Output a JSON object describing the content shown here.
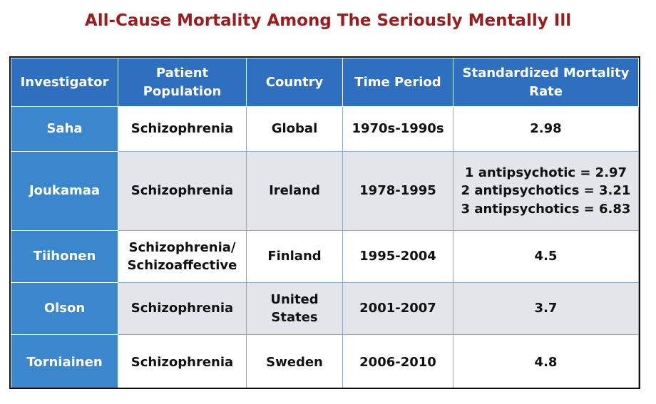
{
  "title": "All-Cause Mortality Among The Seriously Mentally Ill",
  "headers": {
    "investigator": "Investigator",
    "population_line1": "Patient",
    "population_line2": "Population",
    "country": "Country",
    "time_period": "Time Period",
    "smr_line1": "Standardized Mortality",
    "smr_line2": "Rate"
  },
  "rows": [
    {
      "investigator": "Saha",
      "population": [
        "Schizophrenia"
      ],
      "country": [
        "Global"
      ],
      "time_period": "1970s-1990s",
      "smr": [
        "2.98"
      ]
    },
    {
      "investigator": "Joukamaa",
      "population": [
        "Schizophrenia"
      ],
      "country": [
        "Ireland"
      ],
      "time_period": "1978-1995",
      "smr": [
        "1 antipsychotic = 2.97",
        "2 antipsychotics = 3.21",
        "3 antipsychotics = 6.83"
      ]
    },
    {
      "investigator": "Tiihonen",
      "population": [
        "Schizophrenia/",
        "Schizoaffective"
      ],
      "country": [
        "Finland"
      ],
      "time_period": "1995-2004",
      "smr": [
        "4.5"
      ]
    },
    {
      "investigator": "Olson",
      "population": [
        "Schizophrenia"
      ],
      "country": [
        "United",
        "States"
      ],
      "time_period": "2001-2007",
      "smr": [
        "3.7"
      ]
    },
    {
      "investigator": "Torniainen",
      "population": [
        "Schizophrenia"
      ],
      "country": [
        "Sweden"
      ],
      "time_period": "2006-2010",
      "smr": [
        "4.8"
      ]
    }
  ]
}
